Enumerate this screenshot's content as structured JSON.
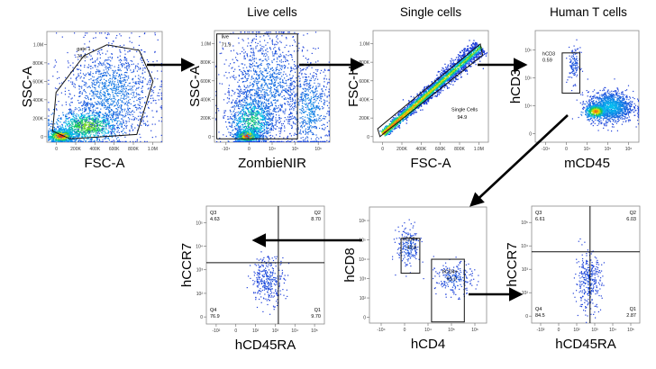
{
  "figure": {
    "arrow_color": "#000000",
    "low_density_color": "#1f3fd9",
    "high_density_color": "#e8281a"
  },
  "chart_data": [
    {
      "type": "scatter",
      "title": "",
      "xlabel": "FSC-A",
      "ylabel": "SSC-A",
      "x_ticks": [
        "0",
        "200K",
        "400K",
        "600K",
        "800K",
        "1.0M"
      ],
      "y_ticks": [
        "0",
        "200K",
        "400K",
        "600K",
        "800K",
        "1.0M"
      ],
      "gates": [
        {
          "name": "gate 1",
          "percent": "75.6",
          "shape": "polygon"
        }
      ]
    },
    {
      "type": "scatter",
      "title": "Live cells",
      "xlabel": "ZombieNIR",
      "ylabel": "SSC-A",
      "x_ticks": [
        "-10⁴",
        "0",
        "10⁴",
        "10⁵",
        "10⁶"
      ],
      "y_ticks": [
        "0",
        "200K",
        "400K",
        "600K",
        "800K",
        "1.0M"
      ],
      "gates": [
        {
          "name": "live",
          "percent": "71.9",
          "shape": "rectangle"
        }
      ]
    },
    {
      "type": "scatter",
      "title": "Single cells",
      "xlabel": "FSC-A",
      "ylabel": "FSC-H",
      "x_ticks": [
        "0",
        "200K",
        "400K",
        "600K",
        "800K",
        "1.0M"
      ],
      "y_ticks": [
        "0",
        "200K",
        "400K",
        "600K",
        "800K",
        "1.0M"
      ],
      "gates": [
        {
          "name": "Single Cells",
          "percent": "94.9",
          "shape": "polygon"
        }
      ]
    },
    {
      "type": "scatter",
      "title": "Human T cells",
      "xlabel": "mCD45",
      "ylabel": "hCD3",
      "x_ticks": [
        "-10⁴",
        "0",
        "10⁴",
        "10⁵",
        "10⁶"
      ],
      "y_ticks": [
        "0",
        "10⁴",
        "10⁵",
        "10⁶"
      ],
      "gates": [
        {
          "name": "hCD3",
          "percent": "0.59",
          "shape": "rectangle"
        }
      ]
    },
    {
      "type": "scatter",
      "title": "",
      "xlabel": "hCD4",
      "ylabel": "hCD8",
      "x_ticks": [
        "-10⁴",
        "0",
        "10⁴",
        "10⁵",
        "10⁶"
      ],
      "y_ticks": [
        "0",
        "10²",
        "10³",
        "10⁴",
        "10⁵",
        "10⁶"
      ],
      "gates": [
        {
          "name": "hCD8+",
          "percent": "43.8",
          "shape": "rectangle"
        },
        {
          "name": "hCD4+",
          "percent": "51.0",
          "shape": "rectangle"
        }
      ]
    },
    {
      "type": "scatter",
      "title": "",
      "xlabel": "hCD45RA",
      "ylabel": "hCCR7",
      "x_ticks": [
        "-10²",
        "0",
        "10²",
        "10³",
        "10⁴",
        "10⁵"
      ],
      "y_ticks": [
        "0",
        "10²",
        "10³",
        "10⁴",
        "10⁵"
      ],
      "quadrants": [
        {
          "name": "Q3",
          "percent": "4.63"
        },
        {
          "name": "Q2",
          "percent": "8.70"
        },
        {
          "name": "Q4",
          "percent": "76.9"
        },
        {
          "name": "Q1",
          "percent": "9.70"
        }
      ]
    },
    {
      "type": "scatter",
      "title": "",
      "xlabel": "hCD45RA",
      "ylabel": "hCCR7",
      "x_ticks": [
        "-10²",
        "0",
        "10²",
        "10³",
        "10⁴",
        "10⁵"
      ],
      "y_ticks": [
        "0",
        "10²",
        "10³",
        "10⁴",
        "10⁵"
      ],
      "quadrants": [
        {
          "name": "Q3",
          "percent": "6.61"
        },
        {
          "name": "Q2",
          "percent": "6.03"
        },
        {
          "name": "Q4",
          "percent": "84.5"
        },
        {
          "name": "Q1",
          "percent": "2.87"
        }
      ]
    }
  ]
}
